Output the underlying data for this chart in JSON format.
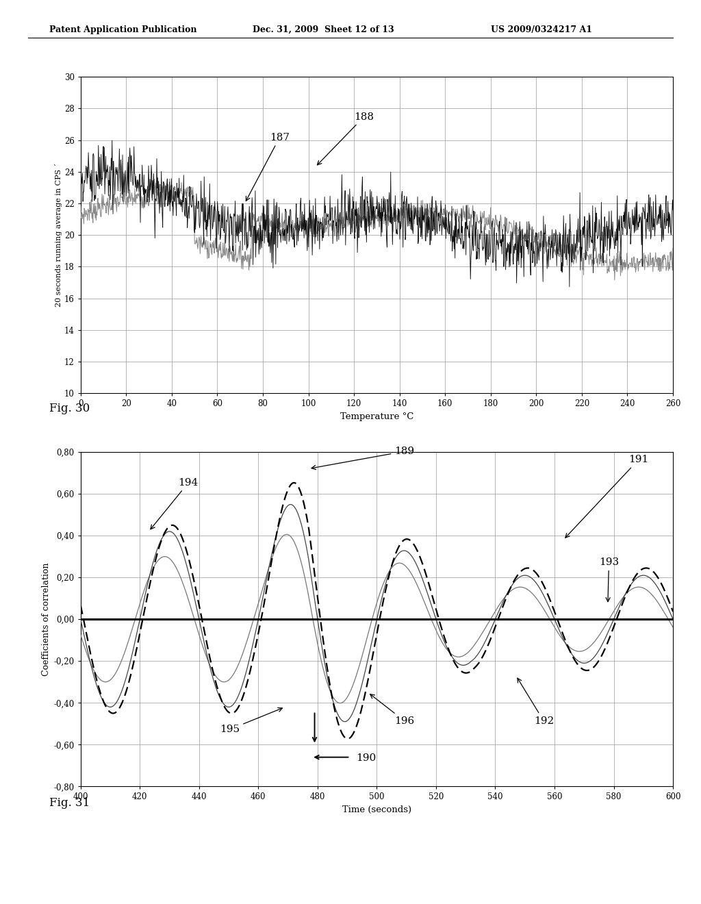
{
  "fig30": {
    "xlabel": "Temperature °C",
    "ylabel": "20 seconds running average in CPS ´",
    "xlim": [
      0,
      260
    ],
    "ylim": [
      10,
      30
    ],
    "xticks": [
      0,
      20,
      40,
      60,
      80,
      100,
      120,
      140,
      160,
      180,
      200,
      220,
      240,
      260
    ],
    "yticks": [
      10,
      12,
      14,
      16,
      18,
      20,
      22,
      24,
      26,
      28,
      30
    ],
    "fig_label": "Fig. 30"
  },
  "fig31": {
    "xlabel": "Time (seconds)",
    "ylabel": "Coefficients of correlation",
    "xlim": [
      400,
      600
    ],
    "ylim": [
      -0.8,
      0.8
    ],
    "xticks": [
      400,
      420,
      440,
      460,
      480,
      500,
      520,
      540,
      560,
      580,
      600
    ],
    "yticks": [
      -0.8,
      -0.6,
      -0.4,
      -0.2,
      0.0,
      0.2,
      0.4,
      0.6,
      0.8
    ],
    "fig_label": "Fig. 31"
  },
  "header": {
    "left": "Patent Application Publication",
    "center": "Dec. 31, 2009  Sheet 12 of 13",
    "right": "US 2009/0324217 A1"
  },
  "background_color": "#ffffff",
  "grid_color": "#999999"
}
